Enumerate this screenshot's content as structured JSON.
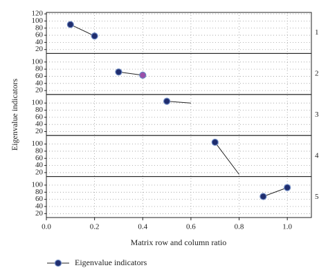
{
  "chart_data": {
    "type": "line",
    "x_label": "Matrix row and column ratio",
    "y_label": "Eigenvalue indicators",
    "legend": "Eigenvalue indicators",
    "color": "#1f2d6e",
    "grid": true,
    "xlim": [
      0,
      1.1
    ],
    "xticks": [
      {
        "value": 0,
        "label": "0.0"
      },
      0.2,
      0.4,
      0.6,
      0.8,
      {
        "value": 1,
        "label": "1.0"
      }
    ],
    "panels": [
      {
        "label": "1",
        "ylim": [
          9,
          124
        ],
        "yticks": [
          20,
          40,
          60,
          80,
          100,
          120
        ],
        "x": [
          0.1,
          0.2
        ],
        "values": [
          90,
          58
        ],
        "marker_colors": [
          "#1f2d6e",
          "#1f2d6e"
        ]
      },
      {
        "label": "2",
        "ylim": [
          9,
          124
        ],
        "yticks": [
          20,
          40,
          60,
          80,
          100
        ],
        "x": [
          0.3,
          0.4
        ],
        "values": [
          72,
          63
        ],
        "marker_colors": [
          "#1f2d6e",
          "#9b4fa8"
        ]
      },
      {
        "label": "3",
        "ylim": [
          9,
          124
        ],
        "yticks": [
          20,
          40,
          60,
          80,
          100
        ],
        "x": [
          0.5,
          0.6
        ],
        "values": [
          105,
          100
        ],
        "marker_colors": [
          "#1f2d6e",
          null
        ]
      },
      {
        "label": "4",
        "ylim": [
          9,
          124
        ],
        "yticks": [
          20,
          40,
          60,
          80,
          100
        ],
        "x": [
          0.7,
          0.8
        ],
        "values": [
          105,
          15
        ],
        "marker_colors": [
          "#1f2d6e",
          null
        ]
      },
      {
        "label": "5",
        "ylim": [
          9,
          124
        ],
        "yticks": [
          20,
          40,
          60,
          80,
          100
        ],
        "x": [
          0.9,
          1.0
        ],
        "values": [
          68,
          93
        ],
        "marker_colors": [
          "#1f2d6e",
          "#1f2d6e"
        ]
      }
    ]
  }
}
